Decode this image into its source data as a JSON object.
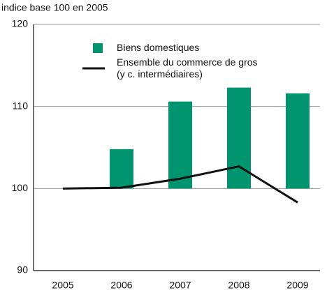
{
  "chart_data": {
    "type": "bar_line",
    "subtitle": "indice base 100 en 2005",
    "categories": [
      "2005",
      "2006",
      "2007",
      "2008",
      "2009"
    ],
    "series": [
      {
        "name": "Biens domestiques",
        "type": "bar",
        "color": "#00956e",
        "values": [
          100,
          104.8,
          110.6,
          112.3,
          111.6
        ]
      },
      {
        "name": "Ensemble du commerce de gros\n(y c. intermédiaires)",
        "type": "line",
        "color": "#111111",
        "values": [
          100,
          100.1,
          101.2,
          102.7,
          98.3
        ]
      }
    ],
    "ylim": [
      90,
      120
    ],
    "yticks": [
      90,
      100,
      110,
      120
    ],
    "grid": true
  }
}
